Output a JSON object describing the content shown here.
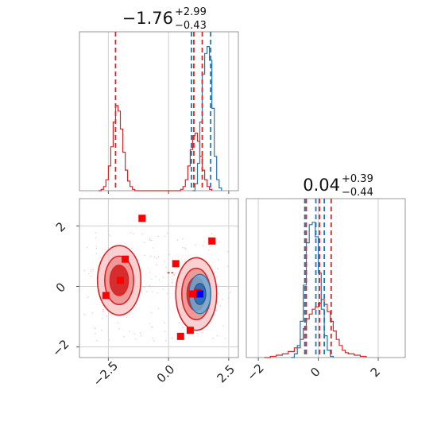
{
  "chart_data": [
    {
      "type": "histogram",
      "panel": "top-left",
      "title": {
        "value": "−1.76",
        "plus": "+2.99",
        "minus": "−0.43"
      },
      "xlim": [
        -3.7,
        2.9
      ],
      "vlines_red": [
        -2.2,
        1.05,
        1.4
      ],
      "vlines_blue": [
        0.95,
        1.75
      ],
      "series": [
        {
          "color": "#d62728",
          "bins": [
            [
              -2.9,
              0
            ],
            [
              -2.8,
              1
            ],
            [
              -2.7,
              3
            ],
            [
              -2.6,
              8
            ],
            [
              -2.5,
              18
            ],
            [
              -2.4,
              32
            ],
            [
              -2.3,
              50
            ],
            [
              -2.2,
              62
            ],
            [
              -2.1,
              58
            ],
            [
              -2.0,
              45
            ],
            [
              -1.9,
              28
            ],
            [
              -1.8,
              15
            ],
            [
              -1.7,
              7
            ],
            [
              -1.6,
              3
            ],
            [
              -1.5,
              1
            ],
            [
              -1.4,
              0
            ],
            [
              0.4,
              0
            ],
            [
              0.5,
              1
            ],
            [
              0.6,
              3
            ],
            [
              0.7,
              8
            ],
            [
              0.8,
              18
            ],
            [
              0.9,
              30
            ],
            [
              1.0,
              40
            ],
            [
              1.1,
              42
            ],
            [
              1.2,
              36
            ],
            [
              1.3,
              25
            ],
            [
              1.4,
              15
            ],
            [
              1.5,
              8
            ],
            [
              1.6,
              3
            ],
            [
              1.7,
              1
            ],
            [
              1.8,
              0
            ]
          ]
        },
        {
          "color": "#1f77b4",
          "bins": [
            [
              1.0,
              0
            ],
            [
              1.1,
              5
            ],
            [
              1.2,
              20
            ],
            [
              1.3,
              50
            ],
            [
              1.4,
              85
            ],
            [
              1.5,
              100
            ],
            [
              1.6,
              105
            ],
            [
              1.7,
              95
            ],
            [
              1.8,
              60
            ],
            [
              1.9,
              25
            ],
            [
              2.0,
              8
            ],
            [
              2.1,
              2
            ],
            [
              2.2,
              0
            ]
          ]
        }
      ]
    },
    {
      "type": "scatter-contour",
      "panel": "bottom-left",
      "xlim": [
        -3.7,
        2.9
      ],
      "ylim": [
        -2.35,
        2.9
      ],
      "xticks": [
        "−2.5",
        "0.0",
        "2.5"
      ],
      "yticks": [
        "−2",
        "0",
        "2"
      ],
      "red_squares": [
        [
          -1.1,
          2.25
        ],
        [
          -1.8,
          0.9
        ],
        [
          -2.0,
          0.2
        ],
        [
          -2.6,
          -0.3
        ],
        [
          0.3,
          0.75
        ],
        [
          1.8,
          1.5
        ],
        [
          1.0,
          -0.25
        ],
        [
          1.2,
          -0.2
        ],
        [
          0.9,
          -1.45
        ],
        [
          0.5,
          -1.65
        ]
      ],
      "blue_square": [
        1.3,
        -0.25
      ],
      "red_contours": [
        {
          "cx": -2.05,
          "cy": 0.2,
          "rx": [
            0.9,
            0.6,
            0.38
          ],
          "ry": [
            1.15,
            0.8,
            0.5
          ]
        },
        {
          "cx": 1.15,
          "cy": -0.25,
          "rx": [
            0.85,
            0.6,
            0.38
          ],
          "ry": [
            1.2,
            0.85,
            0.55
          ]
        }
      ],
      "blue_contour": {
        "cx": 1.3,
        "cy": -0.25,
        "rx": [
          0.45,
          0.25
        ],
        "ry": [
          0.65,
          0.35
        ]
      },
      "red_segment": [
        [
          -0.05,
          0.45
        ],
        [
          0.2,
          0.45
        ]
      ]
    },
    {
      "type": "histogram",
      "panel": "bottom-right",
      "title": {
        "value": "0.04",
        "plus": "+0.39",
        "minus": "−0.44"
      },
      "xlim": [
        -2.4,
        2.9
      ],
      "xticks": [
        "−2",
        "0",
        "2"
      ],
      "vlines_red": [
        -0.4,
        0.04,
        0.43
      ],
      "vlines_blue": [
        -0.45,
        -0.08,
        0.2
      ],
      "series": [
        {
          "color": "#d62728",
          "bins": [
            [
              -1.8,
              0
            ],
            [
              -1.6,
              1
            ],
            [
              -1.4,
              2
            ],
            [
              -1.2,
              3
            ],
            [
              -1.0,
              5
            ],
            [
              -0.8,
              8
            ],
            [
              -0.6,
              15
            ],
            [
              -0.5,
              24
            ],
            [
              -0.4,
              32
            ],
            [
              -0.3,
              36
            ],
            [
              -0.2,
              40
            ],
            [
              -0.1,
              42
            ],
            [
              0.0,
              45
            ],
            [
              0.1,
              48
            ],
            [
              0.2,
              44
            ],
            [
              0.3,
              38
            ],
            [
              0.4,
              30
            ],
            [
              0.5,
              22
            ],
            [
              0.6,
              15
            ],
            [
              0.7,
              10
            ],
            [
              0.8,
              6
            ],
            [
              0.9,
              4
            ],
            [
              1.0,
              3
            ],
            [
              1.2,
              2
            ],
            [
              1.4,
              1
            ],
            [
              1.6,
              0
            ]
          ]
        },
        {
          "color": "#1f77b4",
          "bins": [
            [
              -0.9,
              0
            ],
            [
              -0.8,
              3
            ],
            [
              -0.7,
              10
            ],
            [
              -0.6,
              30
            ],
            [
              -0.5,
              60
            ],
            [
              -0.4,
              95
            ],
            [
              -0.3,
              110
            ],
            [
              -0.2,
              112
            ],
            [
              -0.1,
              100
            ],
            [
              0.0,
              70
            ],
            [
              0.1,
              40
            ],
            [
              0.2,
              18
            ],
            [
              0.3,
              6
            ],
            [
              0.4,
              1
            ],
            [
              0.5,
              0
            ]
          ]
        }
      ]
    }
  ]
}
